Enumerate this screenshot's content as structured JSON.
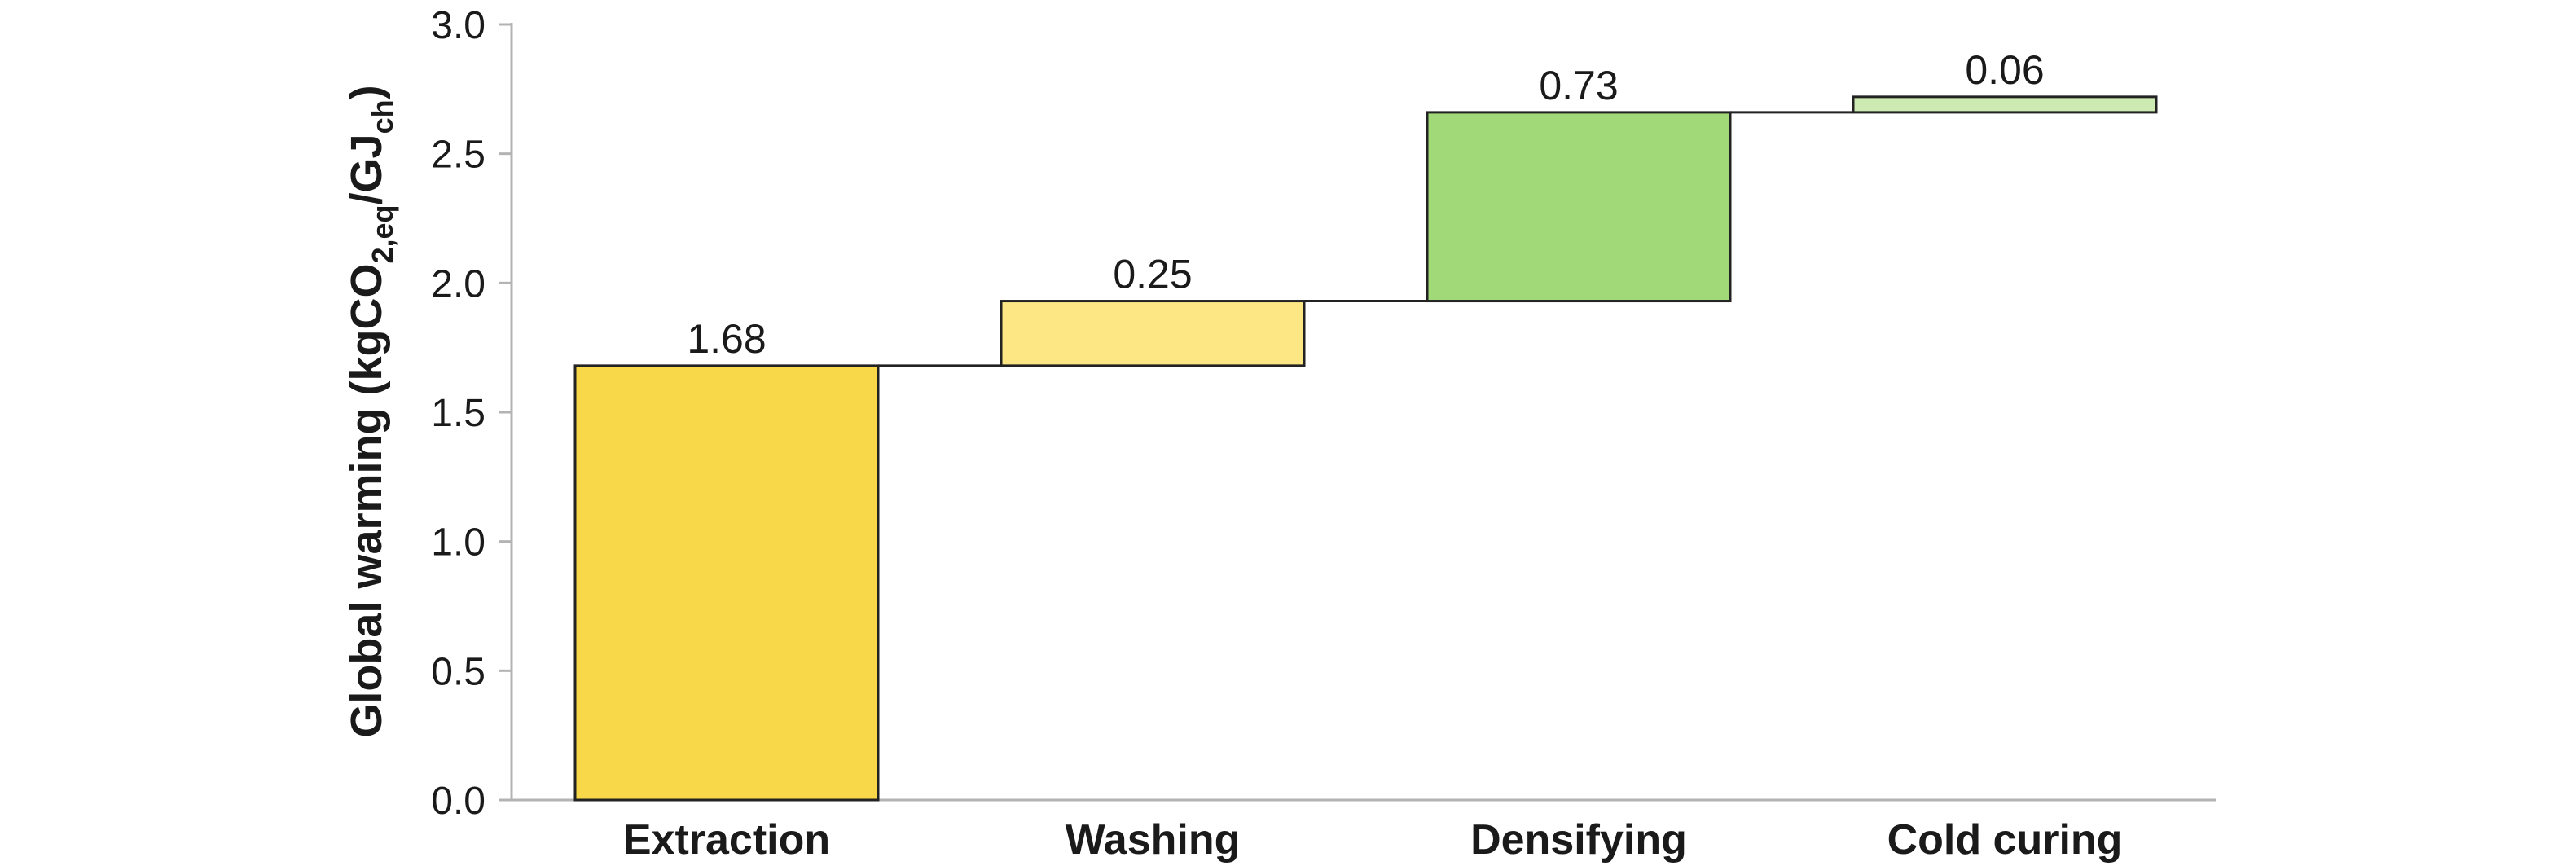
{
  "chart_data": {
    "type": "bar",
    "subtype": "waterfall",
    "categories": [
      "Extraction",
      "Washing",
      "Densifying",
      "Cold curing"
    ],
    "values": [
      1.68,
      0.25,
      0.73,
      0.06
    ],
    "value_labels": [
      "1.68",
      "0.25",
      "0.73",
      "0.06"
    ],
    "colors": [
      "#f8d748",
      "#fce784",
      "#a2d978",
      "#cdeab3"
    ],
    "ylabel": {
      "main": "Global warming (kgCO",
      "sub1": "2,eq",
      "mid": "/GJ",
      "sub2": "ch",
      "end": ")"
    },
    "ylim": [
      0,
      3.0
    ],
    "yticks": [
      "0.0",
      "0.5",
      "1.0",
      "1.5",
      "2.0",
      "2.5",
      "3.0"
    ],
    "grid": false,
    "legend": "none"
  }
}
